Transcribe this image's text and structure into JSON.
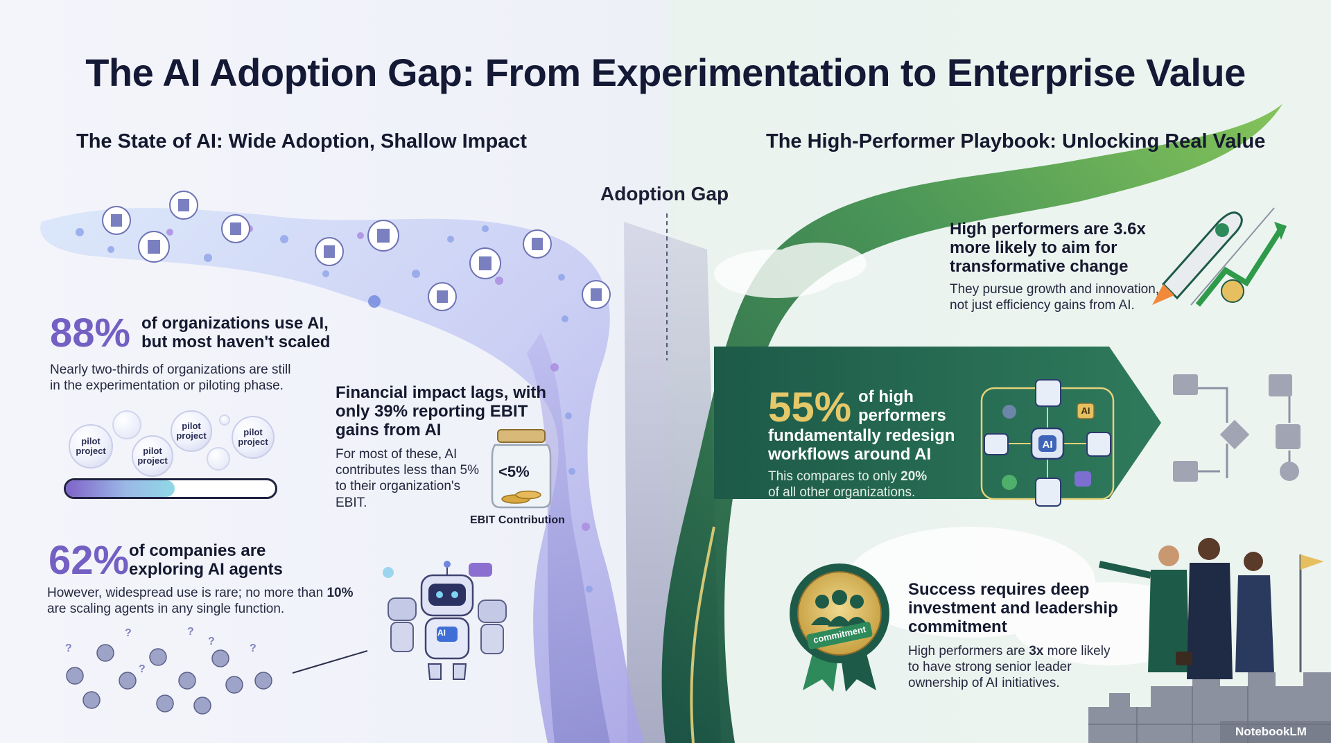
{
  "title": "The AI Adoption Gap: From Experimentation to Enterprise Value",
  "left_heading": "The State of AI: Wide Adoption, Shallow Impact",
  "right_heading": "The High-Performer Playbook: Unlocking Real Value",
  "gap_label": "Adoption Gap",
  "stat_88": {
    "value": "88%",
    "headline": [
      "of organizations use AI,",
      "but most haven't scaled"
    ],
    "detail": [
      "Nearly two-thirds of organizations are still",
      "in the experimentation or piloting phase."
    ],
    "pilots": [
      "pilot project",
      "pilot project",
      "pilot project",
      "pilot project"
    ],
    "progress_fraction": 0.52
  },
  "financial": {
    "headline": [
      "Financial impact lags, with",
      "only 39% reporting EBIT",
      "gains from AI"
    ],
    "detail": [
      "For most of these, AI",
      "contributes less than 5%",
      "to their organization's",
      "EBIT."
    ],
    "jar_value": "<5%",
    "jar_caption": "EBIT Contribution"
  },
  "stat_62": {
    "value": "62%",
    "headline": [
      "of companies are",
      "exploring AI agents"
    ],
    "detail_pre": "However, widespread use is rare; no more than ",
    "detail_bold": "10%",
    "detail_post": "are scaling agents in any single function.",
    "robot_badge": "AI"
  },
  "high_performers": {
    "headline": [
      "High performers are 3.6x",
      "more likely to aim for",
      "transformative change"
    ],
    "detail": [
      "They pursue growth and innovation,",
      "not just efficiency gains from AI."
    ]
  },
  "stat_55": {
    "value": "55%",
    "headline_top": [
      "of high",
      "performers"
    ],
    "headline_rest": [
      "fundamentally redesign",
      "workflows around AI"
    ],
    "detail_pre": "This compares to only ",
    "detail_bold": "20%",
    "detail_post": "of all other organizations.",
    "hub_label": "AI",
    "ai_tag": "AI"
  },
  "leadership": {
    "headline": [
      "Success requires deep",
      "investment and leadership",
      "commitment"
    ],
    "detail_pre": "High performers are ",
    "detail_bold": "3x",
    "detail_mid": " more likely",
    "detail_rest": [
      "to have strong senior leader",
      "ownership of AI initiatives."
    ],
    "badge_text": "commitment"
  },
  "watermark": "NotebookLM",
  "colors": {
    "purple": "#7360c2",
    "gold": "#e5c86a",
    "dark_green": "#1d5a48",
    "navy": "#141935"
  }
}
